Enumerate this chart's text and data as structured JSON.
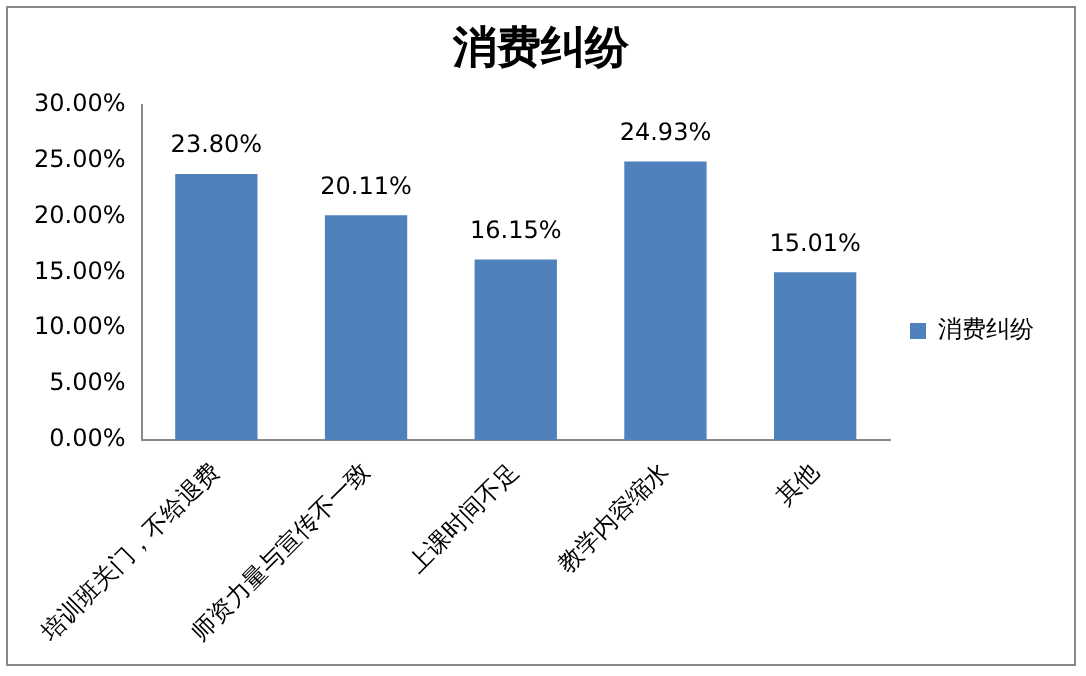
{
  "chart_data": {
    "type": "bar",
    "title": "消费纠纷",
    "categories": [
      "培训班关门，不给退费",
      "师资力量与宣传不一致",
      "上课时间不足",
      "教学内容缩水",
      "其他"
    ],
    "series": [
      {
        "name": "消费纠纷",
        "color": "#4f81bd",
        "values": [
          23.8,
          20.11,
          16.15,
          24.93,
          15.01
        ],
        "value_labels": [
          "23.80%",
          "20.11%",
          "16.15%",
          "24.93%",
          "15.01%"
        ]
      }
    ],
    "ylim": [
      0,
      30
    ],
    "yticks": [
      {
        "value": 0,
        "label": "0.00%"
      },
      {
        "value": 5,
        "label": "5.00%"
      },
      {
        "value": 10,
        "label": "10.00%"
      },
      {
        "value": 15,
        "label": "15.00%"
      },
      {
        "value": 20,
        "label": "20.00%"
      },
      {
        "value": 25,
        "label": "25.00%"
      },
      {
        "value": 30,
        "label": "30.00%"
      }
    ],
    "grid": false,
    "legend": "right"
  }
}
